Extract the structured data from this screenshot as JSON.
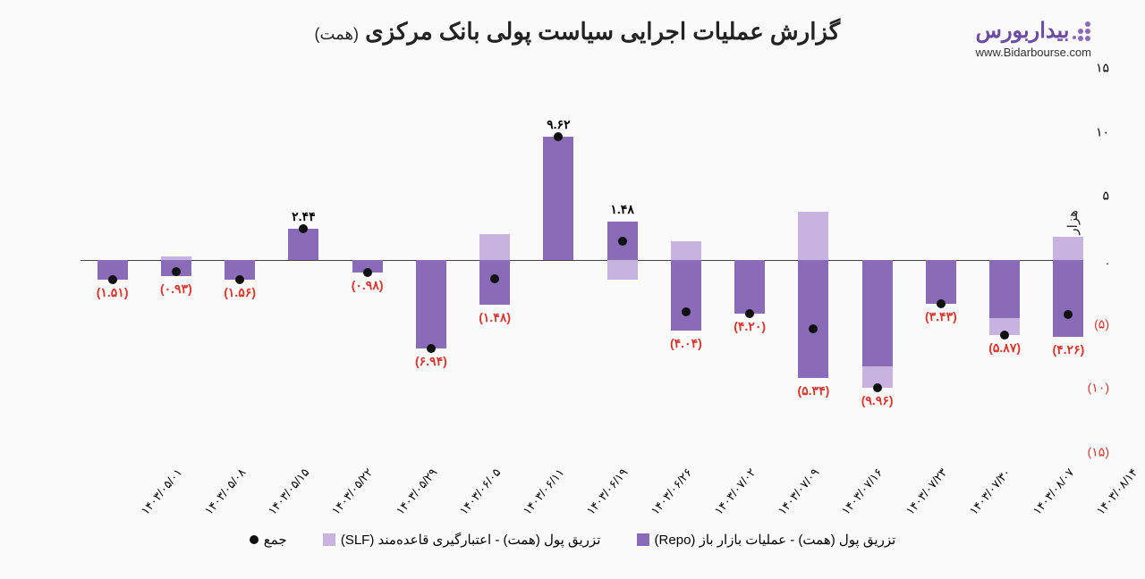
{
  "logo_text": "بیداربورس",
  "logo_url": "www.Bidarbourse.com",
  "title_main": "گزارش عملیات اجرایی سیاست پولی بانک مرکزی",
  "title_sub": "(همت)",
  "y_label": "هزار میلیارد تومان",
  "chart": {
    "type": "bar+marker",
    "ylim": [
      -15,
      15
    ],
    "ytick_step": 5,
    "y_ticks": [
      {
        "v": 15,
        "label": "۱۵",
        "neg": false
      },
      {
        "v": 10,
        "label": "۱۰",
        "neg": false
      },
      {
        "v": 5,
        "label": "۵",
        "neg": false
      },
      {
        "v": 0,
        "label": ".",
        "neg": false
      },
      {
        "v": -5,
        "label": "(۵)",
        "neg": true
      },
      {
        "v": -10,
        "label": "(۱۰)",
        "neg": true
      },
      {
        "v": -15,
        "label": "(۱۵)",
        "neg": true
      }
    ],
    "colors": {
      "repo": "#8a6bb8",
      "slf": "#c8b3e0",
      "marker": "#111111",
      "label_pos": "#111111",
      "label_neg": "#d9362e",
      "baseline": "#444444",
      "background": "#fafafa"
    },
    "categories": [
      "۱۴۰۳/۰۵/۰۱",
      "۱۴۰۳/۰۵/۰۸",
      "۱۴۰۳/۰۵/۱۵",
      "۱۴۰۳/۰۵/۲۲",
      "۱۴۰۳/۰۵/۲۹",
      "۱۴۰۳/۰۶/۰۵",
      "۱۴۰۳/۰۶/۱۱",
      "۱۴۰۳/۰۶/۱۹",
      "۱۴۰۳/۰۶/۲۶",
      "۱۴۰۳/۰۷/۰۲",
      "۱۴۰۳/۰۷/۰۹",
      "۱۴۰۳/۰۷/۱۶",
      "۱۴۰۳/۰۷/۲۳",
      "۱۴۰۳/۰۷/۳۰",
      "۱۴۰۳/۰۸/۰۷",
      "۱۴۰۳/۰۸/۱۴"
    ],
    "series": [
      {
        "x": "۱۴۰۳/۰۵/۰۱",
        "repo": [
          -1.51,
          0
        ],
        "slf": [
          0,
          0
        ],
        "sum": -1.51,
        "label": "(۱.۵۱)",
        "neg": true
      },
      {
        "x": "۱۴۰۳/۰۵/۰۸",
        "repo": [
          -1.23,
          0
        ],
        "slf": [
          0,
          0.3
        ],
        "sum": -0.93,
        "label": "(۰.۹۳)",
        "neg": true
      },
      {
        "x": "۱۴۰۳/۰۵/۱۵",
        "repo": [
          -1.56,
          0
        ],
        "slf": [
          0,
          0
        ],
        "sum": -1.56,
        "label": "(۱.۵۶)",
        "neg": true
      },
      {
        "x": "۱۴۰۳/۰۵/۲۲",
        "repo": [
          0,
          2.44
        ],
        "slf": [
          0,
          0
        ],
        "sum": 2.44,
        "label": "۲.۴۴",
        "neg": false
      },
      {
        "x": "۱۴۰۳/۰۵/۲۹",
        "repo": [
          -0.98,
          0
        ],
        "slf": [
          0,
          0
        ],
        "sum": -0.98,
        "label": "(۰.۹۸)",
        "neg": true
      },
      {
        "x": "۱۴۰۳/۰۶/۰۵",
        "repo": [
          -6.94,
          0
        ],
        "slf": [
          0,
          0
        ],
        "sum": -6.94,
        "label": "(۶.۹۴)",
        "neg": true
      },
      {
        "x": "۱۴۰۳/۰۶/۱۱",
        "repo": [
          -3.5,
          0
        ],
        "slf": [
          0,
          2.0
        ],
        "sum": -1.48,
        "label": "(۱.۴۸)",
        "neg": true
      },
      {
        "x": "۱۴۰۳/۰۶/۱۹",
        "repo": [
          0,
          9.62
        ],
        "slf": [
          0,
          0
        ],
        "sum": 9.62,
        "label": "۹.۶۲",
        "neg": false
      },
      {
        "x": "۱۴۰۳/۰۶/۲۶",
        "repo": [
          0,
          3.0
        ],
        "slf": [
          -1.5,
          0
        ],
        "sum": 1.48,
        "label": "۱.۴۸",
        "neg": false
      },
      {
        "x": "۱۴۰۳/۰۷/۰۲",
        "repo": [
          -5.5,
          0
        ],
        "slf": [
          0,
          1.5
        ],
        "sum": -4.04,
        "label": "(۴.۰۴)",
        "neg": true
      },
      {
        "x": "۱۴۰۳/۰۷/۰۹",
        "repo": [
          -4.2,
          0
        ],
        "slf": [
          0,
          0
        ],
        "sum": -4.2,
        "label": "(۴.۲۰)",
        "neg": true
      },
      {
        "x": "۱۴۰۳/۰۷/۱۶",
        "repo": [
          -9.2,
          0
        ],
        "slf": [
          0,
          3.8
        ],
        "sum": -5.34,
        "label": "(۵.۳۴)",
        "neg": true
      },
      {
        "x": "۱۴۰۳/۰۷/۲۳",
        "repo": [
          -8.3,
          0
        ],
        "slf": [
          -9.96,
          -8.3
        ],
        "sum": -9.96,
        "label": "(۹.۹۶)",
        "neg": true
      },
      {
        "x": "۱۴۰۳/۰۷/۳۰",
        "repo": [
          -3.43,
          0
        ],
        "slf": [
          0,
          0
        ],
        "sum": -3.43,
        "label": "(۳.۴۳)",
        "neg": true
      },
      {
        "x": "۱۴۰۳/۰۸/۰۷",
        "repo": [
          -4.5,
          0
        ],
        "slf": [
          -5.87,
          -4.5
        ],
        "sum": -5.87,
        "label": "(۵.۸۷)",
        "neg": true
      },
      {
        "x": "۱۴۰۳/۰۸/۱۴",
        "repo": [
          -6.0,
          0
        ],
        "slf": [
          0,
          1.8
        ],
        "sum": -4.26,
        "label": "(۴.۲۶)",
        "neg": true
      }
    ]
  },
  "legend": {
    "repo": "تزریق پول (همت) - عملیات بازار باز (Repo)",
    "slf": "تزریق پول (همت) - اعتبارگیری قاعده‌مند (SLF)",
    "sum": "جمع"
  }
}
